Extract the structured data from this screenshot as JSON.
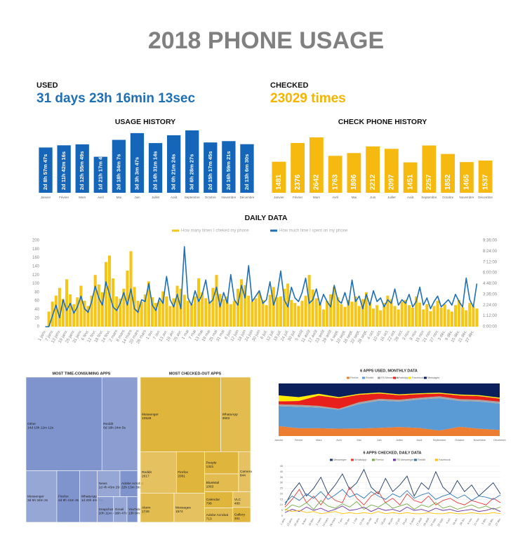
{
  "header": {
    "title": "2018 PHONE USAGE"
  },
  "used": {
    "label": "USED",
    "value": "31 days 23h 16min 13sec"
  },
  "checked": {
    "label": "CHECKED",
    "value": "23029 times"
  },
  "chart_data": [
    {
      "type": "bar",
      "title": "USAGE HISTORY",
      "categories": [
        "Janvier",
        "Février",
        "Mars",
        "Avril",
        "Mai",
        "Juin",
        "Juillet",
        "Août",
        "Septembre",
        "Octobre",
        "Novembre",
        "Décembre"
      ],
      "values": [
        205067,
        214936,
        219349,
        163066,
        239647,
        270227,
        225074,
        260484,
        282507,
        227865,
        233961,
        219990
      ],
      "value_labels": [
        "2d 8h 57m 47s",
        "2d 11h 42m 16s",
        "2d 12h 55m 49s",
        "1d 21h 17m 46s",
        "2d 18h 34m 7s",
        "3d 3h 3m 47s",
        "2d 14h 31m 14s",
        "3d 0h 21m 24s",
        "3d 6h 28m 27s",
        "2d 15h 17m 45s",
        "2d 16h 59m 21s",
        "2d 13h 6m 30s"
      ],
      "color": "#1565b8"
    },
    {
      "type": "bar",
      "title": "CHECK PHONE HISTORY",
      "categories": [
        "Janvier",
        "Février",
        "Mars",
        "Avril",
        "Mai",
        "Juin",
        "Juillet",
        "Août",
        "Septembre",
        "Octobre",
        "Novembre",
        "Décembre"
      ],
      "values": [
        1481,
        2376,
        2642,
        1763,
        1896,
        2212,
        2097,
        1451,
        2257,
        1852,
        1465,
        1537
      ],
      "color": "#f5b90f"
    },
    {
      "type": "combo",
      "title": "DAILY DATA",
      "categories": [
        "1 janv.",
        null,
        "7 janv.",
        null,
        "13 janv.",
        null,
        "19 janv.",
        null,
        "25 janv.",
        null,
        "31 janv.",
        null,
        "6 févr.",
        null,
        "12 févr.",
        null,
        "18 févr.",
        null,
        "24 févr.",
        null,
        "2 mars",
        null,
        "8 mars",
        null,
        "14 mars",
        null,
        "20 mars",
        null,
        "26 mars",
        null,
        "1 avr.",
        null,
        "7 avr.",
        null,
        "13 avr.",
        null,
        "19 avr.",
        null,
        "25 avr.",
        null,
        "1 mai",
        null,
        "7 mai",
        null,
        "13 mai",
        null,
        "19 mai",
        null,
        "25 mai",
        null,
        "31 mai",
        null,
        "6 juin",
        null,
        "12 juin",
        null,
        "18 juin",
        null,
        "24 juin",
        null,
        "30 juin",
        null,
        "6 juil.",
        null,
        "12 juil.",
        null,
        "18 juil.",
        null,
        "24 juil.",
        null,
        "30 juil.",
        null,
        "5 août",
        null,
        "11 août",
        null,
        "17 août",
        null,
        "23 août",
        null,
        "29 août",
        null,
        "4 sept.",
        null,
        "10 sept.",
        null,
        "16 sept.",
        null,
        "22 sept.",
        null,
        "28 sept.",
        null,
        "4 oct.",
        null,
        "10 oct.",
        null,
        "16 oct.",
        null,
        "22 oct.",
        null,
        "28 oct.",
        null,
        "3 nov.",
        null,
        "9 nov.",
        null,
        "15 nov.",
        null,
        "21 nov.",
        null,
        "27 nov.",
        null,
        "3 déc.",
        null,
        "9 déc.",
        null,
        "15 déc.",
        null,
        "21 déc.",
        null,
        "27 déc.",
        null
      ],
      "series": [
        {
          "name": "How many times I cheked my phone",
          "color": "#f5c518",
          "mark": "bar",
          "values": [
            0,
            35,
            58,
            72,
            90,
            64,
            110,
            75,
            52,
            68,
            95,
            60,
            48,
            72,
            120,
            98,
            80,
            150,
            165,
            112,
            70,
            65,
            88,
            130,
            175,
            92,
            60,
            58,
            75,
            105,
            68,
            55,
            60,
            82,
            70,
            48,
            66,
            95,
            88,
            74,
            60,
            52,
            70,
            112,
            80,
            66,
            58,
            90,
            120,
            76,
            64,
            70,
            52,
            60,
            88,
            110,
            96,
            72,
            58,
            66,
            80,
            62,
            50,
            74,
            92,
            68,
            70,
            88,
            100,
            62,
            55,
            48,
            60,
            72,
            120,
            86,
            66,
            54,
            40,
            60,
            75,
            92,
            68,
            52,
            46,
            62,
            58,
            70,
            48,
            64,
            80,
            56,
            42,
            50,
            38,
            55,
            72,
            64,
            48,
            40,
            58,
            62,
            50,
            44,
            70,
            56,
            40,
            52,
            36,
            48,
            60,
            44,
            52,
            40,
            35,
            50,
            62,
            45,
            38,
            55,
            48,
            42
          ]
        },
        {
          "name": "How much time I spent on my phone",
          "color": "#1f6fb5",
          "mark": "line",
          "axis": "y2",
          "values": [
            0,
            0,
            1.2,
            2.4,
            1.0,
            3.0,
            1.8,
            2.6,
            1.5,
            2.2,
            3.4,
            2.0,
            1.6,
            2.8,
            4.5,
            3.2,
            2.4,
            5.0,
            3.6,
            2.2,
            1.8,
            2.6,
            3.8,
            2.4,
            4.2,
            2.0,
            1.6,
            3.0,
            2.8,
            4.8,
            2.4,
            1.8,
            3.2,
            2.6,
            5.6,
            3.0,
            2.2,
            3.6,
            2.0,
            8.9,
            3.2,
            2.4,
            4.0,
            2.8,
            3.6,
            5.2,
            2.6,
            3.0,
            4.4,
            2.2,
            3.8,
            2.6,
            5.8,
            3.0,
            2.4,
            4.6,
            3.2,
            6.8,
            2.8,
            3.4,
            4.0,
            2.6,
            3.0,
            5.0,
            2.4,
            3.6,
            6.2,
            3.0,
            2.2,
            4.4,
            3.2,
            2.8,
            3.8,
            5.4,
            2.6,
            3.0,
            4.2,
            2.4,
            3.6,
            2.8,
            2.2,
            4.6,
            3.0,
            2.6,
            3.8,
            2.4,
            5.2,
            2.8,
            3.4,
            2.0,
            3.6,
            2.4,
            4.0,
            2.8,
            3.2,
            2.2,
            3.0,
            2.6,
            4.2,
            2.4,
            3.0,
            2.6,
            3.6,
            2.2,
            2.8,
            4.4,
            2.4,
            3.2,
            2.0,
            2.8,
            3.4,
            2.2,
            2.6,
            3.0,
            2.4,
            3.6,
            2.8,
            2.2,
            5.4,
            3.0,
            2.2,
            4.8
          ]
        }
      ],
      "ylim": [
        0,
        200
      ],
      "yticks": [
        0,
        20,
        40,
        60,
        80,
        100,
        120,
        140,
        160,
        180,
        200
      ],
      "y2lim": [
        0,
        9.6
      ],
      "y2ticks": [
        {
          "value": 0,
          "label": "0:00:00"
        },
        {
          "value": 1.2,
          "label": "1:12:00"
        },
        {
          "value": 2.4,
          "label": "2:24:00"
        },
        {
          "value": 3.6,
          "label": "3:36:00"
        },
        {
          "value": 4.8,
          "label": "4:48:00"
        },
        {
          "value": 6,
          "label": "6:00:00"
        },
        {
          "value": 7.2,
          "label": "7:12:00"
        },
        {
          "value": 8.4,
          "label": "8:24:00"
        },
        {
          "value": 9.6,
          "label": "9:36:00"
        }
      ],
      "legend": "top"
    },
    {
      "type": "treemap",
      "title": "MOST TIME-CONSUMING APPS",
      "categories": [
        "Other",
        "Reddit",
        "Messenger",
        "Firefox",
        "WhatsApp",
        "News",
        "Adobe Acrobat",
        "Snapchat",
        "Gmail",
        "YouTube"
      ],
      "values": [
        1246332,
        584645,
        279242,
        207663,
        158685,
        103409,
        80019,
        72704,
        60422,
        47376
      ],
      "value_labels": [
        "14d 10h 12m 12s",
        "6d 18h 24m 5s",
        "3d 5h 34m 2s",
        "2d 9h 41m 3s",
        "1d 20h 4m 45s",
        "1d 4h 43m 29s",
        "22h 13m 39s",
        "20h 11m 44s",
        "16h 47m 2s",
        "13h 9m 36s"
      ],
      "color": "#7f93cc"
    },
    {
      "type": "treemap",
      "title": "MOST CHECKED-OUT APPS",
      "categories": [
        "Messenger",
        "WhatsApp",
        "Reddit",
        "Firefox",
        "Alarm",
        "Messages",
        "People",
        "BlueMail",
        "Camera",
        "Calendar",
        "Adobe Acrobat",
        "VLC",
        "Gallery"
      ],
      "values": [
        10528,
        3903,
        2617,
        2061,
        1728,
        1574,
        1321,
        1063,
        844,
        798,
        713,
        488,
        461
      ],
      "color": "#dfb53c"
    },
    {
      "type": "area",
      "title": "6 APPS USED, MONTHLY DATA",
      "stacking": "percent",
      "categories": [
        "Janvier",
        "Février",
        "Mars",
        "Avril",
        "Mai",
        "Juin",
        "Juillet",
        "Août",
        "Septembre",
        "Octobre",
        "Novembre",
        "Décembre"
      ],
      "series": [
        {
          "name": "Firefox",
          "color": "#ed7d31",
          "values": [
            10,
            8,
            9,
            7,
            8,
            9,
            10,
            9,
            6,
            10,
            8,
            6
          ]
        },
        {
          "name": "Reddit",
          "color": "#5b9bd5",
          "values": [
            20,
            22,
            24,
            18,
            26,
            30,
            28,
            32,
            35,
            28,
            30,
            26
          ]
        },
        {
          "name": "FB Messenger",
          "color": "#a5a5a5",
          "values": [
            2,
            2,
            2,
            1,
            2,
            2,
            2,
            2,
            2,
            2,
            2,
            2
          ]
        },
        {
          "name": "WhatsApp",
          "color": "#e8201c",
          "values": [
            3,
            4,
            12,
            10,
            8,
            6,
            5,
            4,
            3,
            4,
            4,
            3
          ]
        },
        {
          "name": "Facebook",
          "color": "#ffea00",
          "values": [
            6,
            4,
            2,
            1,
            1,
            1,
            1,
            1,
            1,
            1,
            1,
            1
          ]
        },
        {
          "name": "Messages",
          "color": "#0b1f5c",
          "values": [
            12,
            14,
            12,
            13,
            11,
            10,
            12,
            11,
            10,
            12,
            13,
            14
          ]
        }
      ],
      "legend": "top"
    },
    {
      "type": "line",
      "title": "6 APPS CHECKED, DAILY DATA",
      "categories": [
        "1 janv.",
        "13 janv.",
        "25 janv.",
        "6 févr.",
        "18 févr.",
        "2 mars",
        "14 mars",
        "26 mars",
        "7 avr.",
        "19 avr.",
        "1 mai",
        "13 mai",
        "25 mai",
        "6 juin",
        "18 juin",
        "30 juin",
        "12 juil.",
        "24 juil.",
        "5 août",
        "17 août",
        "29 août",
        "10 sept.",
        "22 sept.",
        "4 oct.",
        "16 oct.",
        "28 oct.",
        "9 nov.",
        "21 nov.",
        "3 déc.",
        "15 déc.",
        "27 déc."
      ],
      "series": [
        {
          "name": "Messenger",
          "color": "#1f3864",
          "values": [
            10,
            22,
            30,
            18,
            25,
            35,
            20,
            28,
            38,
            24,
            30,
            42,
            26,
            20,
            34,
            22,
            28,
            36,
            18,
            30,
            24,
            40,
            26,
            20,
            32,
            22,
            28,
            18,
            24,
            30,
            20
          ]
        },
        {
          "name": "WhatsApp",
          "color": "#e53935",
          "values": [
            8,
            15,
            24,
            12,
            18,
            10,
            20,
            14,
            12,
            26,
            16,
            10,
            18,
            22,
            12,
            16,
            10,
            20,
            14,
            12,
            18,
            10,
            14,
            16,
            12,
            10,
            14,
            12,
            10,
            16,
            12
          ]
        },
        {
          "name": "Firefox",
          "color": "#70ad47",
          "values": [
            5,
            10,
            8,
            12,
            6,
            14,
            9,
            7,
            11,
            8,
            13,
            6,
            10,
            8,
            12,
            7,
            9,
            11,
            6,
            10,
            8,
            12,
            7,
            9,
            6,
            8,
            10,
            7,
            9,
            6,
            8
          ]
        },
        {
          "name": "FB Messenger",
          "color": "#7030a0",
          "values": [
            3,
            6,
            4,
            8,
            5,
            7,
            4,
            6,
            9,
            5,
            6,
            8,
            4,
            7,
            5,
            6,
            4,
            8,
            5,
            6,
            4,
            7,
            5,
            6,
            4,
            5,
            6,
            4,
            5,
            7,
            4
          ]
        },
        {
          "name": "Reddit",
          "color": "#2e75b6",
          "values": [
            12,
            18,
            14,
            20,
            16,
            22,
            15,
            19,
            24,
            17,
            20,
            16,
            22,
            18,
            15,
            20,
            17,
            23,
            16,
            19,
            21,
            15,
            18,
            20,
            16,
            19,
            14,
            18,
            17,
            15,
            19
          ]
        },
        {
          "name": "Facebook",
          "color": "#ffc000",
          "values": [
            6,
            4,
            5,
            3,
            4,
            2,
            3,
            4,
            2,
            3,
            2,
            3,
            2,
            4,
            2,
            3,
            2,
            3,
            2,
            2,
            3,
            2,
            2,
            3,
            2,
            2,
            3,
            2,
            2,
            3,
            2
          ]
        }
      ],
      "ylim": [
        0,
        45
      ],
      "yticks": [
        0,
        5,
        10,
        15,
        20,
        25,
        30,
        35,
        40,
        45
      ],
      "grid": true,
      "legend": "top"
    }
  ]
}
